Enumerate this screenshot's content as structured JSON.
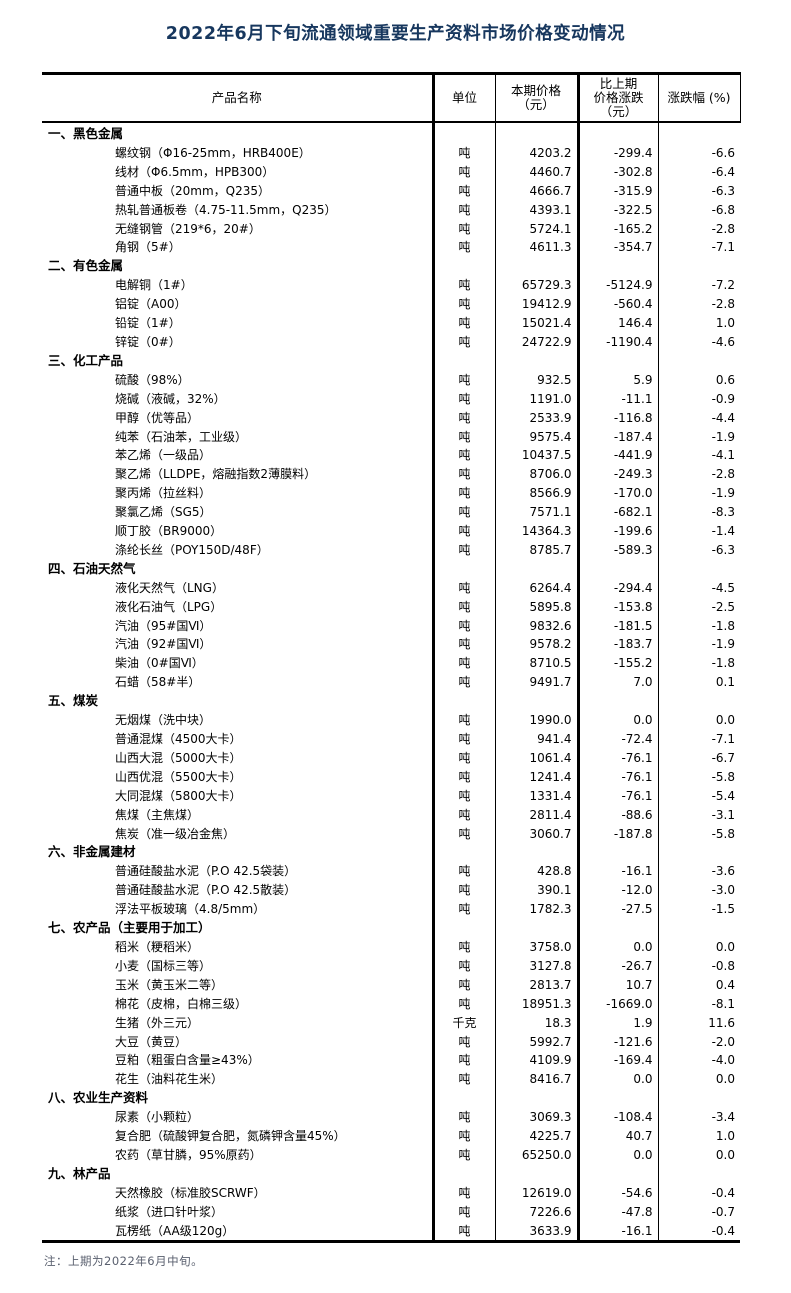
{
  "page": {
    "title": "2022年6月下旬流通领域重要生产资料市场价格变动情况",
    "footnote": "注：上期为2022年6月中旬。"
  },
  "table": {
    "headers": {
      "product": "产品名称",
      "unit": "单位",
      "price": "本期价格\n（元）",
      "change": "比上期\n价格涨跌\n（元）",
      "pct": "涨跌幅 (%)"
    },
    "sections": [
      {
        "name": "一、黑色金属",
        "rows": [
          {
            "product": "螺纹钢（Φ16-25mm，HRB400E）",
            "unit": "吨",
            "price": "4203.2",
            "change": "-299.4",
            "pct": "-6.6"
          },
          {
            "product": "线材（Φ6.5mm，HPB300）",
            "unit": "吨",
            "price": "4460.7",
            "change": "-302.8",
            "pct": "-6.4"
          },
          {
            "product": "普通中板（20mm，Q235）",
            "unit": "吨",
            "price": "4666.7",
            "change": "-315.9",
            "pct": "-6.3"
          },
          {
            "product": "热轧普通板卷（4.75-11.5mm，Q235）",
            "unit": "吨",
            "price": "4393.1",
            "change": "-322.5",
            "pct": "-6.8"
          },
          {
            "product": "无缝钢管（219*6，20#）",
            "unit": "吨",
            "price": "5724.1",
            "change": "-165.2",
            "pct": "-2.8"
          },
          {
            "product": "角钢（5#）",
            "unit": "吨",
            "price": "4611.3",
            "change": "-354.7",
            "pct": "-7.1"
          }
        ]
      },
      {
        "name": "二、有色金属",
        "rows": [
          {
            "product": "电解铜（1#）",
            "unit": "吨",
            "price": "65729.3",
            "change": "-5124.9",
            "pct": "-7.2"
          },
          {
            "product": "铝锭（A00）",
            "unit": "吨",
            "price": "19412.9",
            "change": "-560.4",
            "pct": "-2.8"
          },
          {
            "product": "铅锭（1#）",
            "unit": "吨",
            "price": "15021.4",
            "change": "146.4",
            "pct": "1.0"
          },
          {
            "product": "锌锭（0#）",
            "unit": "吨",
            "price": "24722.9",
            "change": "-1190.4",
            "pct": "-4.6"
          }
        ]
      },
      {
        "name": "三、化工产品",
        "rows": [
          {
            "product": "硫酸（98%）",
            "unit": "吨",
            "price": "932.5",
            "change": "5.9",
            "pct": "0.6"
          },
          {
            "product": "烧碱（液碱，32%）",
            "unit": "吨",
            "price": "1191.0",
            "change": "-11.1",
            "pct": "-0.9"
          },
          {
            "product": "甲醇（优等品）",
            "unit": "吨",
            "price": "2533.9",
            "change": "-116.8",
            "pct": "-4.4"
          },
          {
            "product": "纯苯（石油苯，工业级）",
            "unit": "吨",
            "price": "9575.4",
            "change": "-187.4",
            "pct": "-1.9"
          },
          {
            "product": "苯乙烯（一级品）",
            "unit": "吨",
            "price": "10437.5",
            "change": "-441.9",
            "pct": "-4.1"
          },
          {
            "product": "聚乙烯（LLDPE，熔融指数2薄膜料）",
            "unit": "吨",
            "price": "8706.0",
            "change": "-249.3",
            "pct": "-2.8"
          },
          {
            "product": "聚丙烯（拉丝料）",
            "unit": "吨",
            "price": "8566.9",
            "change": "-170.0",
            "pct": "-1.9"
          },
          {
            "product": "聚氯乙烯（SG5）",
            "unit": "吨",
            "price": "7571.1",
            "change": "-682.1",
            "pct": "-8.3"
          },
          {
            "product": "顺丁胶（BR9000）",
            "unit": "吨",
            "price": "14364.3",
            "change": "-199.6",
            "pct": "-1.4"
          },
          {
            "product": "涤纶长丝（POY150D/48F）",
            "unit": "吨",
            "price": "8785.7",
            "change": "-589.3",
            "pct": "-6.3"
          }
        ]
      },
      {
        "name": "四、石油天然气",
        "rows": [
          {
            "product": "液化天然气（LNG）",
            "unit": "吨",
            "price": "6264.4",
            "change": "-294.4",
            "pct": "-4.5"
          },
          {
            "product": "液化石油气（LPG）",
            "unit": "吨",
            "price": "5895.8",
            "change": "-153.8",
            "pct": "-2.5"
          },
          {
            "product": "汽油（95#国Ⅵ）",
            "unit": "吨",
            "price": "9832.6",
            "change": "-181.5",
            "pct": "-1.8"
          },
          {
            "product": "汽油（92#国Ⅵ）",
            "unit": "吨",
            "price": "9578.2",
            "change": "-183.7",
            "pct": "-1.9"
          },
          {
            "product": "柴油（0#国Ⅵ）",
            "unit": "吨",
            "price": "8710.5",
            "change": "-155.2",
            "pct": "-1.8"
          },
          {
            "product": "石蜡（58#半）",
            "unit": "吨",
            "price": "9491.7",
            "change": "7.0",
            "pct": "0.1"
          }
        ]
      },
      {
        "name": "五、煤炭",
        "rows": [
          {
            "product": "无烟煤（洗中块）",
            "unit": "吨",
            "price": "1990.0",
            "change": "0.0",
            "pct": "0.0"
          },
          {
            "product": "普通混煤（4500大卡）",
            "unit": "吨",
            "price": "941.4",
            "change": "-72.4",
            "pct": "-7.1"
          },
          {
            "product": "山西大混（5000大卡）",
            "unit": "吨",
            "price": "1061.4",
            "change": "-76.1",
            "pct": "-6.7"
          },
          {
            "product": "山西优混（5500大卡）",
            "unit": "吨",
            "price": "1241.4",
            "change": "-76.1",
            "pct": "-5.8"
          },
          {
            "product": "大同混煤（5800大卡）",
            "unit": "吨",
            "price": "1331.4",
            "change": "-76.1",
            "pct": "-5.4"
          },
          {
            "product": "焦煤（主焦煤）",
            "unit": "吨",
            "price": "2811.4",
            "change": "-88.6",
            "pct": "-3.1"
          },
          {
            "product": "焦炭（准一级冶金焦）",
            "unit": "吨",
            "price": "3060.7",
            "change": "-187.8",
            "pct": "-5.8"
          }
        ]
      },
      {
        "name": "六、非金属建材",
        "rows": [
          {
            "product": "普通硅酸盐水泥（P.O 42.5袋装）",
            "unit": "吨",
            "price": "428.8",
            "change": "-16.1",
            "pct": "-3.6"
          },
          {
            "product": "普通硅酸盐水泥（P.O 42.5散装）",
            "unit": "吨",
            "price": "390.1",
            "change": "-12.0",
            "pct": "-3.0"
          },
          {
            "product": "浮法平板玻璃（4.8/5mm）",
            "unit": "吨",
            "price": "1782.3",
            "change": "-27.5",
            "pct": "-1.5"
          }
        ]
      },
      {
        "name": "七、农产品（主要用于加工）",
        "rows": [
          {
            "product": "稻米（粳稻米）",
            "unit": "吨",
            "price": "3758.0",
            "change": "0.0",
            "pct": "0.0"
          },
          {
            "product": "小麦（国标三等）",
            "unit": "吨",
            "price": "3127.8",
            "change": "-26.7",
            "pct": "-0.8"
          },
          {
            "product": "玉米（黄玉米二等）",
            "unit": "吨",
            "price": "2813.7",
            "change": "10.7",
            "pct": "0.4"
          },
          {
            "product": "棉花（皮棉，白棉三级）",
            "unit": "吨",
            "price": "18951.3",
            "change": "-1669.0",
            "pct": "-8.1"
          },
          {
            "product": "生猪（外三元）",
            "unit": "千克",
            "price": "18.3",
            "change": "1.9",
            "pct": "11.6"
          },
          {
            "product": "大豆（黄豆）",
            "unit": "吨",
            "price": "5992.7",
            "change": "-121.6",
            "pct": "-2.0"
          },
          {
            "product": "豆粕（粗蛋白含量≥43%）",
            "unit": "吨",
            "price": "4109.9",
            "change": "-169.4",
            "pct": "-4.0"
          },
          {
            "product": "花生（油料花生米）",
            "unit": "吨",
            "price": "8416.7",
            "change": "0.0",
            "pct": "0.0"
          }
        ]
      },
      {
        "name": "八、农业生产资料",
        "rows": [
          {
            "product": "尿素（小颗粒）",
            "unit": "吨",
            "price": "3069.3",
            "change": "-108.4",
            "pct": "-3.4"
          },
          {
            "product": "复合肥（硫酸钾复合肥，氮磷钾含量45%）",
            "unit": "吨",
            "price": "4225.7",
            "change": "40.7",
            "pct": "1.0"
          },
          {
            "product": "农药（草甘膦，95%原药）",
            "unit": "吨",
            "price": "65250.0",
            "change": "0.0",
            "pct": "0.0"
          }
        ]
      },
      {
        "name": "九、林产品",
        "rows": [
          {
            "product": "天然橡胶（标准胶SCRWF）",
            "unit": "吨",
            "price": "12619.0",
            "change": "-54.6",
            "pct": "-0.4"
          },
          {
            "product": "纸浆（进口针叶浆）",
            "unit": "吨",
            "price": "7226.6",
            "change": "-47.8",
            "pct": "-0.7"
          },
          {
            "product": "瓦楞纸（AA级120g）",
            "unit": "吨",
            "price": "3633.9",
            "change": "-16.1",
            "pct": "-0.4"
          }
        ]
      }
    ]
  }
}
